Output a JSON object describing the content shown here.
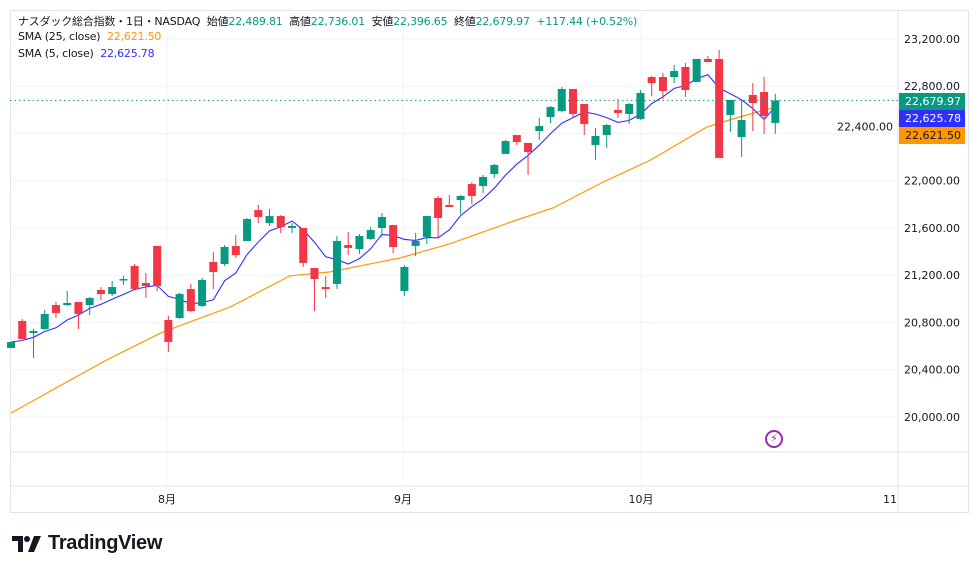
{
  "header": {
    "symbol": "ナスダック総合指数・1日・NASDAQ",
    "open_label": "始値",
    "open": "22,489.81",
    "high_label": "高値",
    "high": "22,736.01",
    "low_label": "安値",
    "low": "22,396.65",
    "close_label": "終値",
    "close": "22,679.97",
    "change": "+117.44 (+0.52%)"
  },
  "indicators": [
    {
      "name": "SMA (25, close)",
      "value": "22,621.50",
      "color": "#ff9800"
    },
    {
      "name": "SMA (5, close)",
      "value": "22,625.78",
      "color": "#2f2fff"
    }
  ],
  "price_tags": [
    {
      "label": "22,679.97",
      "value": 22679.97,
      "color": "#089981"
    },
    {
      "label": "22,625.78",
      "value": 22625.78,
      "color": "#2f2fff"
    },
    {
      "label": "22,621.50",
      "value": 22621.5,
      "color": "#ff9800"
    }
  ],
  "branding": "TradingView",
  "chart_data": {
    "type": "candlestick",
    "title": "ナスダック総合指数・1日・NASDAQ",
    "ylim": [
      20000,
      23200
    ],
    "yticks": [
      20000,
      20400,
      20800,
      21200,
      21600,
      22000,
      22400,
      22800,
      23200
    ],
    "ytick_labels": [
      "20,000.00",
      "20,400.00",
      "20,800.00",
      "21,200.00",
      "21,600.00",
      "22,000.00",
      "22,400.00",
      "22,800.00",
      "23,200.00"
    ],
    "xtick_labels": [
      "8月",
      "9月",
      "10月",
      "11"
    ],
    "grid": true,
    "colors": {
      "up": "#089981",
      "down": "#f23645"
    },
    "ohlc": [
      [
        20584,
        20635,
        20584,
        20635
      ],
      [
        20813,
        20830,
        20660,
        20660
      ],
      [
        20711,
        20745,
        20500,
        20728
      ],
      [
        20745,
        20906,
        20736,
        20872
      ],
      [
        20948,
        20973,
        20838,
        20880
      ],
      [
        20948,
        21067,
        20940,
        20965
      ],
      [
        20973,
        20973,
        20745,
        20872
      ],
      [
        20948,
        21016,
        20863,
        21007
      ],
      [
        21075,
        21100,
        20990,
        21041
      ],
      [
        21041,
        21151,
        21024,
        21100
      ],
      [
        21160,
        21194,
        21117,
        21168
      ],
      [
        21278,
        21295,
        21083,
        21083
      ],
      [
        21134,
        21219,
        21007,
        21109
      ],
      [
        21448,
        21448,
        21067,
        21109
      ],
      [
        20821,
        20855,
        20550,
        20635
      ],
      [
        20838,
        21050,
        20830,
        21041
      ],
      [
        21083,
        21126,
        20889,
        20897
      ],
      [
        20940,
        21177,
        20931,
        21160
      ],
      [
        21312,
        21397,
        21083,
        21227
      ],
      [
        21295,
        21456,
        21278,
        21439
      ],
      [
        21448,
        21541,
        21346,
        21371
      ],
      [
        21490,
        21684,
        21490,
        21676
      ],
      [
        21752,
        21795,
        21642,
        21693
      ],
      [
        21642,
        21761,
        21617,
        21701
      ],
      [
        21701,
        21710,
        21558,
        21608
      ],
      [
        21600,
        21642,
        21558,
        21617
      ],
      [
        21600,
        21600,
        21270,
        21304
      ],
      [
        21261,
        21261,
        20897,
        21168
      ],
      [
        21100,
        21194,
        21007,
        21083
      ],
      [
        21126,
        21532,
        21083,
        21490
      ],
      [
        21456,
        21566,
        21371,
        21431
      ],
      [
        21422,
        21549,
        21380,
        21532
      ],
      [
        21507,
        21608,
        21499,
        21583
      ],
      [
        21600,
        21727,
        21524,
        21693
      ],
      [
        21625,
        21625,
        21388,
        21439
      ],
      [
        21067,
        21287,
        21024,
        21270
      ],
      [
        21448,
        21558,
        21363,
        21490
      ],
      [
        21524,
        21701,
        21465,
        21701
      ],
      [
        21854,
        21871,
        21524,
        21685
      ],
      [
        21795,
        21879,
        21778,
        21778
      ],
      [
        21837,
        21879,
        21718,
        21871
      ],
      [
        21972,
        21989,
        21803,
        21871
      ],
      [
        21955,
        22049,
        21896,
        22032
      ],
      [
        22057,
        22142,
        22023,
        22133
      ],
      [
        22227,
        22345,
        22227,
        22336
      ],
      [
        22387,
        22387,
        22303,
        22328
      ],
      [
        22320,
        22320,
        22049,
        22243
      ],
      [
        22421,
        22531,
        22345,
        22463
      ],
      [
        22540,
        22633,
        22489,
        22624
      ],
      [
        22590,
        22794,
        22582,
        22777
      ],
      [
        22777,
        22777,
        22531,
        22565
      ],
      [
        22650,
        22650,
        22387,
        22480
      ],
      [
        22303,
        22447,
        22176,
        22379
      ],
      [
        22387,
        22480,
        22277,
        22472
      ],
      [
        22599,
        22692,
        22531,
        22574
      ],
      [
        22565,
        22658,
        22480,
        22650
      ],
      [
        22523,
        22768,
        22514,
        22743
      ],
      [
        22878,
        22887,
        22717,
        22827
      ],
      [
        22878,
        22912,
        22692,
        22760
      ],
      [
        22878,
        22980,
        22827,
        22929
      ],
      [
        22963,
        22997,
        22709,
        22768
      ],
      [
        22836,
        23031,
        22836,
        23031
      ],
      [
        23031,
        23056,
        23005,
        23005
      ],
      [
        23031,
        23107,
        22193,
        22193
      ],
      [
        22557,
        22684,
        22413,
        22684
      ],
      [
        22370,
        22684,
        22201,
        22514
      ],
      [
        22726,
        22827,
        22421,
        22658
      ],
      [
        22751,
        22878,
        22396,
        22548
      ],
      [
        22489.81,
        22736.01,
        22396.65,
        22679.97
      ]
    ],
    "sma25_points": [
      [
        0,
        20034
      ],
      [
        8.5,
        20482
      ],
      [
        13.5,
        20719
      ],
      [
        19.5,
        20931
      ],
      [
        24.8,
        21194
      ],
      [
        28.4,
        21228
      ],
      [
        34.6,
        21346
      ],
      [
        39,
        21465
      ],
      [
        45,
        21668
      ],
      [
        48.2,
        21769
      ],
      [
        52.7,
        21989
      ],
      [
        56.9,
        22176
      ],
      [
        61.9,
        22455
      ],
      [
        64.2,
        22523
      ],
      [
        66.4,
        22582
      ],
      [
        68,
        22621.5
      ]
    ],
    "sma5_last": 22625.78
  }
}
